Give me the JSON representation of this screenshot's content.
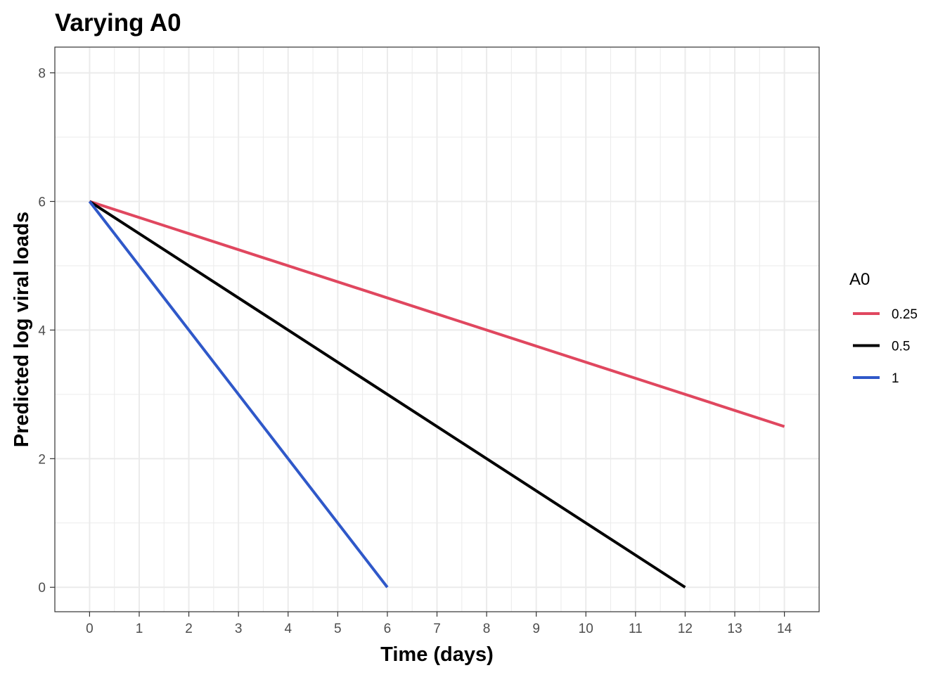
{
  "chart_data": {
    "type": "line",
    "title": "Varying A0",
    "xlabel": "Time (days)",
    "ylabel": "Predicted log viral loads",
    "xlim": [
      -0.7,
      14.7
    ],
    "ylim": [
      -0.38,
      8.4
    ],
    "x_ticks": [
      0,
      1,
      2,
      3,
      4,
      5,
      6,
      7,
      8,
      9,
      10,
      11,
      12,
      13,
      14
    ],
    "y_ticks": [
      0,
      2,
      4,
      6,
      8
    ],
    "x_tick_labels": [
      "0",
      "1",
      "2",
      "3",
      "4",
      "5",
      "6",
      "7",
      "8",
      "9",
      "10",
      "11",
      "12",
      "13",
      "14"
    ],
    "y_tick_labels": [
      "0",
      "2",
      "4",
      "6",
      "8"
    ],
    "grid": true,
    "legend": {
      "title": "A0",
      "position": "right"
    },
    "series": [
      {
        "name": "0.25",
        "color": "#e0475f",
        "x": [
          0,
          14
        ],
        "y": [
          6,
          2.5
        ]
      },
      {
        "name": "0.5",
        "color": "#000000",
        "x": [
          0,
          12
        ],
        "y": [
          6,
          0
        ]
      },
      {
        "name": "1",
        "color": "#2f58c9",
        "x": [
          0,
          6
        ],
        "y": [
          6,
          0
        ]
      }
    ]
  }
}
